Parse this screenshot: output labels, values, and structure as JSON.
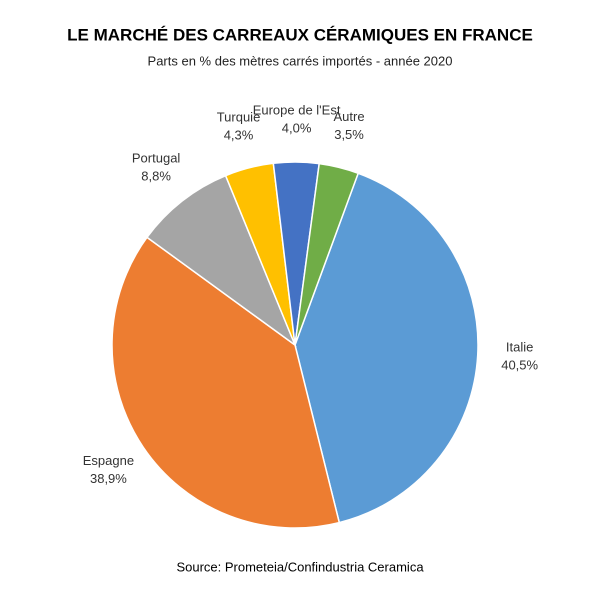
{
  "chart_data": {
    "type": "pie",
    "title": "LE MARCHÉ DES CARREAUX CÉRAMIQUES EN FRANCE",
    "subtitle": "Parts en % des mètres carrés importés - année 2020",
    "source": "Source: Prometeia/Confindustria Ceramica",
    "categories": [
      "Italie",
      "Espagne",
      "Portugal",
      "Turquie",
      "Europe de l'Est",
      "Autre"
    ],
    "values": [
      40.5,
      38.9,
      8.8,
      4.3,
      4.0,
      3.5
    ],
    "value_labels": [
      "40,5%",
      "38,9%",
      "8,8%",
      "4,3%",
      "4,0%",
      "3,5%"
    ],
    "colors": [
      "#5b9bd5",
      "#ed7d31",
      "#a5a5a5",
      "#ffc000",
      "#4472c4",
      "#70ad47"
    ]
  }
}
